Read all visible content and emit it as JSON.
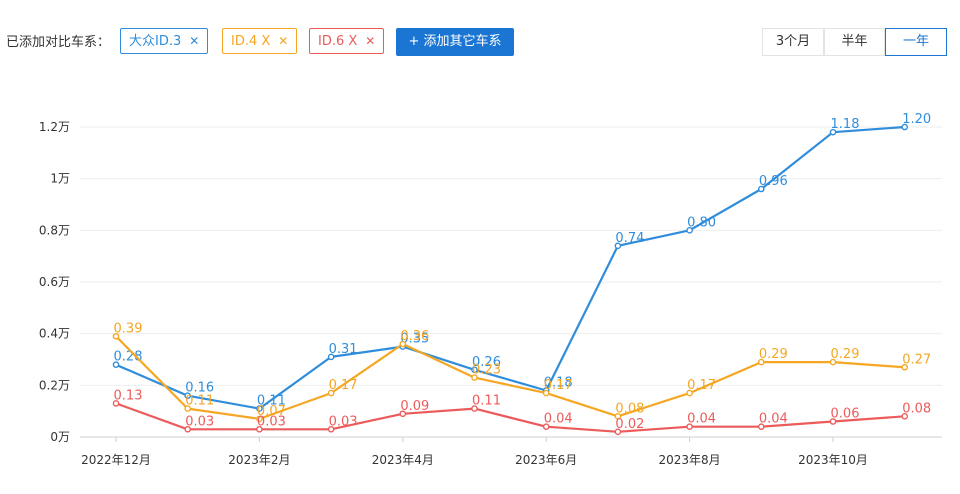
{
  "toolbar": {
    "compare_label": "已添加对比车系：",
    "tags": [
      {
        "label": "大众ID.3",
        "close": "✕",
        "color": "#2f8ddc"
      },
      {
        "label": "ID.4 X",
        "close": "✕",
        "color": "#f5a623"
      },
      {
        "label": "ID.6 X",
        "close": "✕",
        "color": "#ec5b5b"
      }
    ],
    "add_button": "+ 添加其它车系",
    "ranges": [
      "3个月",
      "半年",
      "一年"
    ],
    "active_range": "一年"
  },
  "chart_data": {
    "type": "line",
    "x": [
      "2022年12月",
      "2023年1月",
      "2023年2月",
      "2023年3月",
      "2023年4月",
      "2023年5月",
      "2023年6月",
      "2023年7月",
      "2023年8月",
      "2023年9月",
      "2023年10月",
      "2023年11月"
    ],
    "x_tick_labels": [
      "2022年12月",
      "2023年2月",
      "2023年4月",
      "2023年6月",
      "2023年8月",
      "2023年10月"
    ],
    "y_ticks": [
      0,
      0.2,
      0.4,
      0.6,
      0.8,
      1,
      1.2
    ],
    "y_tick_labels": [
      "0万",
      "0.2万",
      "0.4万",
      "0.6万",
      "0.8万",
      "1万",
      "1.2万"
    ],
    "ylim": [
      0,
      1.2
    ],
    "grid": true,
    "series": [
      {
        "name": "大众ID.3",
        "color": "#2f8ddc",
        "values": [
          0.28,
          0.16,
          0.11,
          0.31,
          0.35,
          0.26,
          0.18,
          0.74,
          0.8,
          0.96,
          1.18,
          1.2
        ],
        "labels": [
          "0.28",
          "0.16",
          "0.11",
          "0.31",
          "0.35",
          "0.26",
          "0.18",
          "0.74",
          "0.80",
          "0.96",
          "1.18",
          "1.20"
        ]
      },
      {
        "name": "ID.4 X",
        "color": "#f5a623",
        "values": [
          0.39,
          0.11,
          0.07,
          0.17,
          0.36,
          0.23,
          0.17,
          0.08,
          0.17,
          0.29,
          0.29,
          0.27
        ],
        "labels": [
          "0.39",
          "0.11",
          "0.07",
          "0.17",
          "0.36",
          "0.23",
          "0.17",
          "0.08",
          "0.17",
          "0.29",
          "0.29",
          "0.27"
        ]
      },
      {
        "name": "ID.6 X",
        "color": "#ec5b5b",
        "values": [
          0.13,
          0.03,
          0.03,
          0.03,
          0.09,
          0.11,
          0.04,
          0.02,
          0.04,
          0.04,
          0.06,
          0.08
        ],
        "labels": [
          "0.13",
          "0.03",
          "0.03",
          "0.03",
          "0.09",
          "0.11",
          "0.04",
          "0.02",
          "0.04",
          "0.04",
          "0.06",
          "0.08"
        ]
      }
    ]
  }
}
